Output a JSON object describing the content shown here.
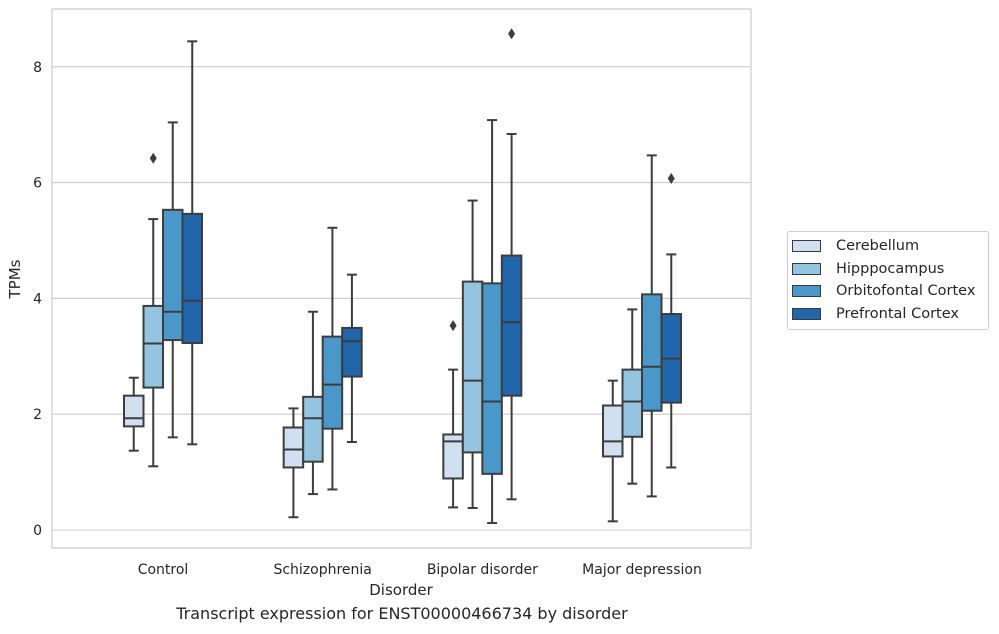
{
  "chart_data": {
    "type": "box",
    "xlabel": "Disorder",
    "ylabel": "TPMs",
    "ylim": [
      -0.3,
      9.0
    ],
    "yticks": [
      0,
      2,
      4,
      6,
      8
    ],
    "grid": "horizontal",
    "legend_position": "right-outside",
    "categories": [
      "Control",
      "Schizophrenia",
      "Bipolar disorder",
      "Major depression"
    ],
    "series": [
      {
        "name": "Cerebellum",
        "color": "#d0e0f1",
        "boxes": [
          {
            "whislo": 1.37,
            "q1": 1.79,
            "med": 1.93,
            "q3": 2.32,
            "whishi": 2.63,
            "fliers": []
          },
          {
            "whislo": 0.22,
            "q1": 1.08,
            "med": 1.39,
            "q3": 1.77,
            "whishi": 2.1,
            "fliers": []
          },
          {
            "whislo": 0.39,
            "q1": 0.89,
            "med": 1.53,
            "q3": 1.65,
            "whishi": 2.77,
            "fliers": [
              3.53
            ]
          },
          {
            "whislo": 0.15,
            "q1": 1.27,
            "med": 1.53,
            "q3": 2.15,
            "whishi": 2.58,
            "fliers": []
          }
        ]
      },
      {
        "name": "Hipppocampus",
        "color": "#94c4df",
        "boxes": [
          {
            "whislo": 1.1,
            "q1": 2.46,
            "med": 3.22,
            "q3": 3.87,
            "whishi": 5.37,
            "fliers": [
              6.42
            ]
          },
          {
            "whislo": 0.62,
            "q1": 1.18,
            "med": 1.93,
            "q3": 2.3,
            "whishi": 3.77,
            "fliers": []
          },
          {
            "whislo": 0.38,
            "q1": 1.34,
            "med": 2.58,
            "q3": 4.29,
            "whishi": 5.69,
            "fliers": []
          },
          {
            "whislo": 0.8,
            "q1": 1.61,
            "med": 2.22,
            "q3": 2.77,
            "whishi": 3.81,
            "fliers": []
          }
        ]
      },
      {
        "name": "Orbitofontal Cortex",
        "color": "#4a98c9",
        "boxes": [
          {
            "whislo": 1.6,
            "q1": 3.28,
            "med": 3.77,
            "q3": 5.53,
            "whishi": 7.04,
            "fliers": []
          },
          {
            "whislo": 0.7,
            "q1": 1.75,
            "med": 2.51,
            "q3": 3.34,
            "whishi": 5.22,
            "fliers": []
          },
          {
            "whislo": 0.12,
            "q1": 0.97,
            "med": 2.22,
            "q3": 4.26,
            "whishi": 7.08,
            "fliers": []
          },
          {
            "whislo": 0.58,
            "q1": 2.06,
            "med": 2.82,
            "q3": 4.07,
            "whishi": 6.47,
            "fliers": []
          }
        ]
      },
      {
        "name": "Prefrontal Cortex",
        "color": "#2165ab",
        "boxes": [
          {
            "whislo": 1.48,
            "q1": 3.23,
            "med": 3.96,
            "q3": 5.46,
            "whishi": 8.44,
            "fliers": []
          },
          {
            "whislo": 1.52,
            "q1": 2.65,
            "med": 3.26,
            "q3": 3.49,
            "whishi": 4.41,
            "fliers": []
          },
          {
            "whislo": 0.53,
            "q1": 2.32,
            "med": 3.59,
            "q3": 4.74,
            "whishi": 6.84,
            "fliers": [
              8.57
            ]
          },
          {
            "whislo": 1.08,
            "q1": 2.2,
            "med": 2.96,
            "q3": 3.73,
            "whishi": 4.76,
            "fliers": [
              6.07
            ]
          }
        ]
      }
    ]
  },
  "caption": "Transcript expression for ENST00000466734 by disorder"
}
